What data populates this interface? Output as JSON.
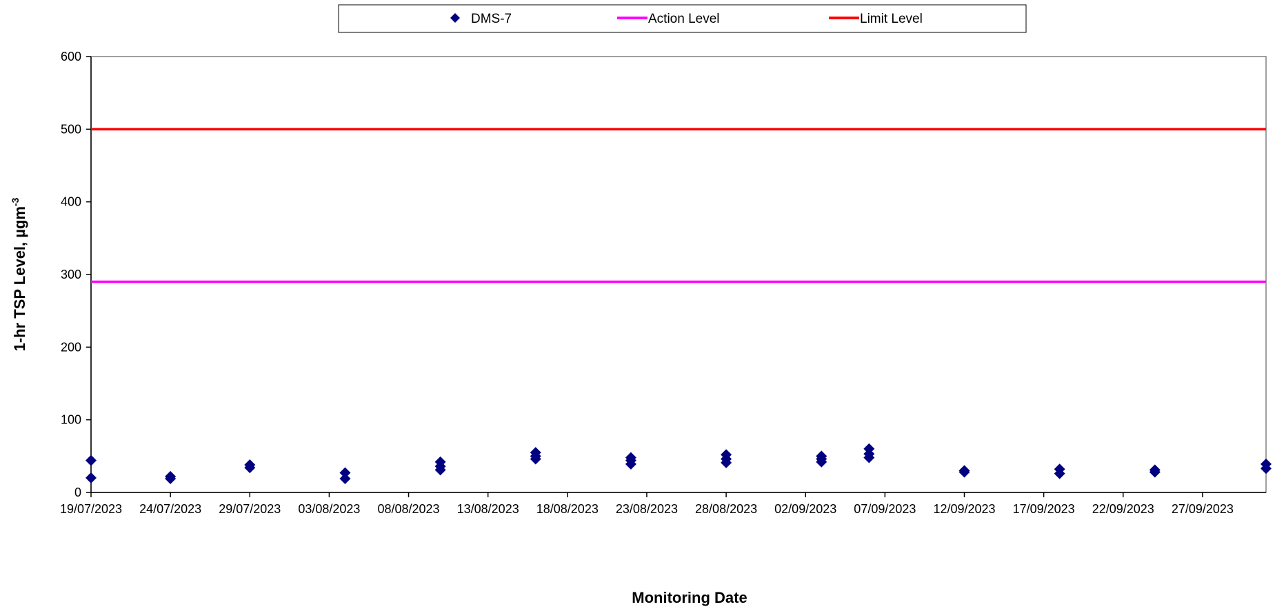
{
  "chart_data": {
    "type": "scatter",
    "title": "",
    "xlabel": "Monitoring Date",
    "ylabel": "1-hr TSP Level, µgm",
    "ylabel_superscript": "-3",
    "ylim": [
      0,
      600
    ],
    "yticks": [
      0,
      100,
      200,
      300,
      400,
      500,
      600
    ],
    "xlim": [
      "2023-07-19",
      "2023-10-01"
    ],
    "xticks": [
      "19/07/2023",
      "24/07/2023",
      "29/07/2023",
      "03/08/2023",
      "08/08/2023",
      "13/08/2023",
      "18/08/2023",
      "23/08/2023",
      "28/08/2023",
      "02/09/2023",
      "07/09/2023",
      "12/09/2023",
      "17/09/2023",
      "22/09/2023",
      "27/09/2023"
    ],
    "grid": false,
    "legend_position": "top",
    "series": [
      {
        "name": "DMS-7",
        "kind": "points",
        "color": "#000080",
        "marker": "diamond",
        "x": [
          "2023-07-19",
          "2023-07-19",
          "2023-07-24",
          "2023-07-24",
          "2023-07-29",
          "2023-07-29",
          "2023-08-04",
          "2023-08-04",
          "2023-08-10",
          "2023-08-10",
          "2023-08-10",
          "2023-08-16",
          "2023-08-16",
          "2023-08-16",
          "2023-08-22",
          "2023-08-22",
          "2023-08-22",
          "2023-08-28",
          "2023-08-28",
          "2023-08-28",
          "2023-09-03",
          "2023-09-03",
          "2023-09-03",
          "2023-09-06",
          "2023-09-06",
          "2023-09-06",
          "2023-09-12",
          "2023-09-12",
          "2023-09-18",
          "2023-09-18",
          "2023-09-24",
          "2023-09-24",
          "2023-10-01",
          "2023-10-01"
        ],
        "y": [
          44,
          20,
          22,
          19,
          38,
          34,
          27,
          19,
          42,
          36,
          31,
          55,
          50,
          46,
          48,
          44,
          39,
          52,
          46,
          41,
          50,
          46,
          42,
          60,
          53,
          48,
          30,
          28,
          32,
          26,
          31,
          28,
          39,
          33
        ]
      },
      {
        "name": "Action Level",
        "kind": "line",
        "color": "#FF00FF",
        "value": 290
      },
      {
        "name": "Limit Level",
        "kind": "line",
        "color": "#FF0000",
        "value": 500
      }
    ]
  }
}
